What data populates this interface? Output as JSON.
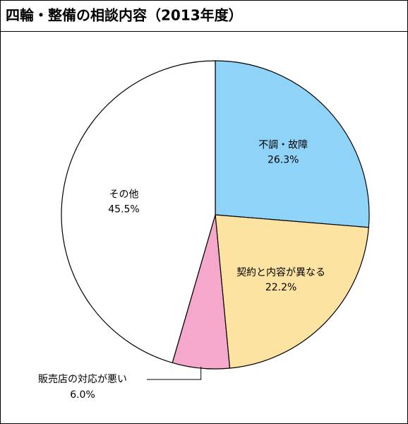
{
  "chart_data": {
    "type": "pie",
    "title": "四輪・整備の相談内容（2013年度）",
    "categories": [
      "不調・故障",
      "契約と内容が異なる",
      "販売店の対応が悪い",
      "その他"
    ],
    "values": [
      26.3,
      22.2,
      6.0,
      45.5
    ],
    "value_labels": [
      "26.3%",
      "22.2%",
      "6.0%",
      "45.5%"
    ],
    "colors": [
      "#8fd3f8",
      "#fde3a2",
      "#f6a8cc",
      "#ffffff"
    ]
  }
}
